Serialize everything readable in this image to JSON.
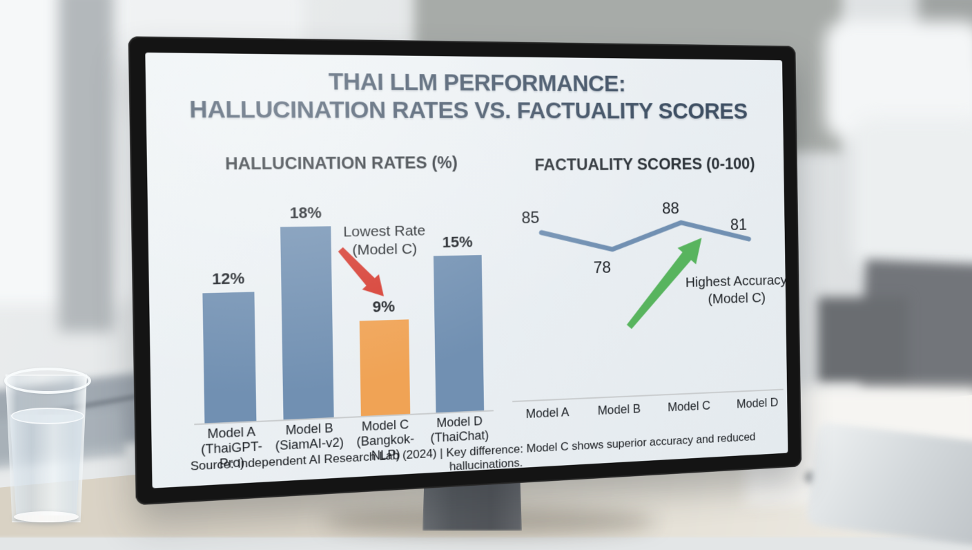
{
  "slide": {
    "title_line1": "THAI LLM PERFORMANCE:",
    "title_line2": "HALLUCINATION RATES VS. FACTUALITY SCORES",
    "footer": "Source: Independent AI Research Lab (2024) | Key difference: Model C shows superior accuracy and reduced hallucinations."
  },
  "colors": {
    "screen_background": "#e9eef2",
    "title_text": "#3e4f63",
    "bar_blue": "#7190b2",
    "bar_orange": "#f0a355",
    "arrow_red": "#d63b30",
    "arrow_green": "#58b45e",
    "line_blue": "#7190b2"
  },
  "chart_data": [
    {
      "type": "bar",
      "title": "HALLUCINATION RATES (%)",
      "categories": [
        "Model A",
        "Model B",
        "Model C",
        "Model D"
      ],
      "sublabels": [
        "(ThaiGPT-Pro)",
        "(SiamAI-v2)",
        "(Bangkok-NLP)",
        "(ThaiChat)"
      ],
      "values": [
        12,
        18,
        9,
        15
      ],
      "unit": "%",
      "ylim": [
        0,
        20
      ],
      "highlight_index": 2,
      "bar_color": "#7190b2",
      "highlight_color": "#f0a355",
      "annotation": {
        "text_line1": "Lowest Rate",
        "text_line2": "(Model C)",
        "arrow_color": "#d63b30"
      }
    },
    {
      "type": "line",
      "title": "FACTUALITY SCORES (0-100)",
      "categories": [
        "Model A",
        "Model B",
        "Model C",
        "Model D"
      ],
      "values": [
        85,
        78,
        88,
        81
      ],
      "ylim": [
        0,
        100
      ],
      "line_color": "#7190b2",
      "annotation": {
        "text_line1": "Highest Accuracy",
        "text_line2": "(Model C)",
        "arrow_color": "#58b45e"
      }
    }
  ]
}
